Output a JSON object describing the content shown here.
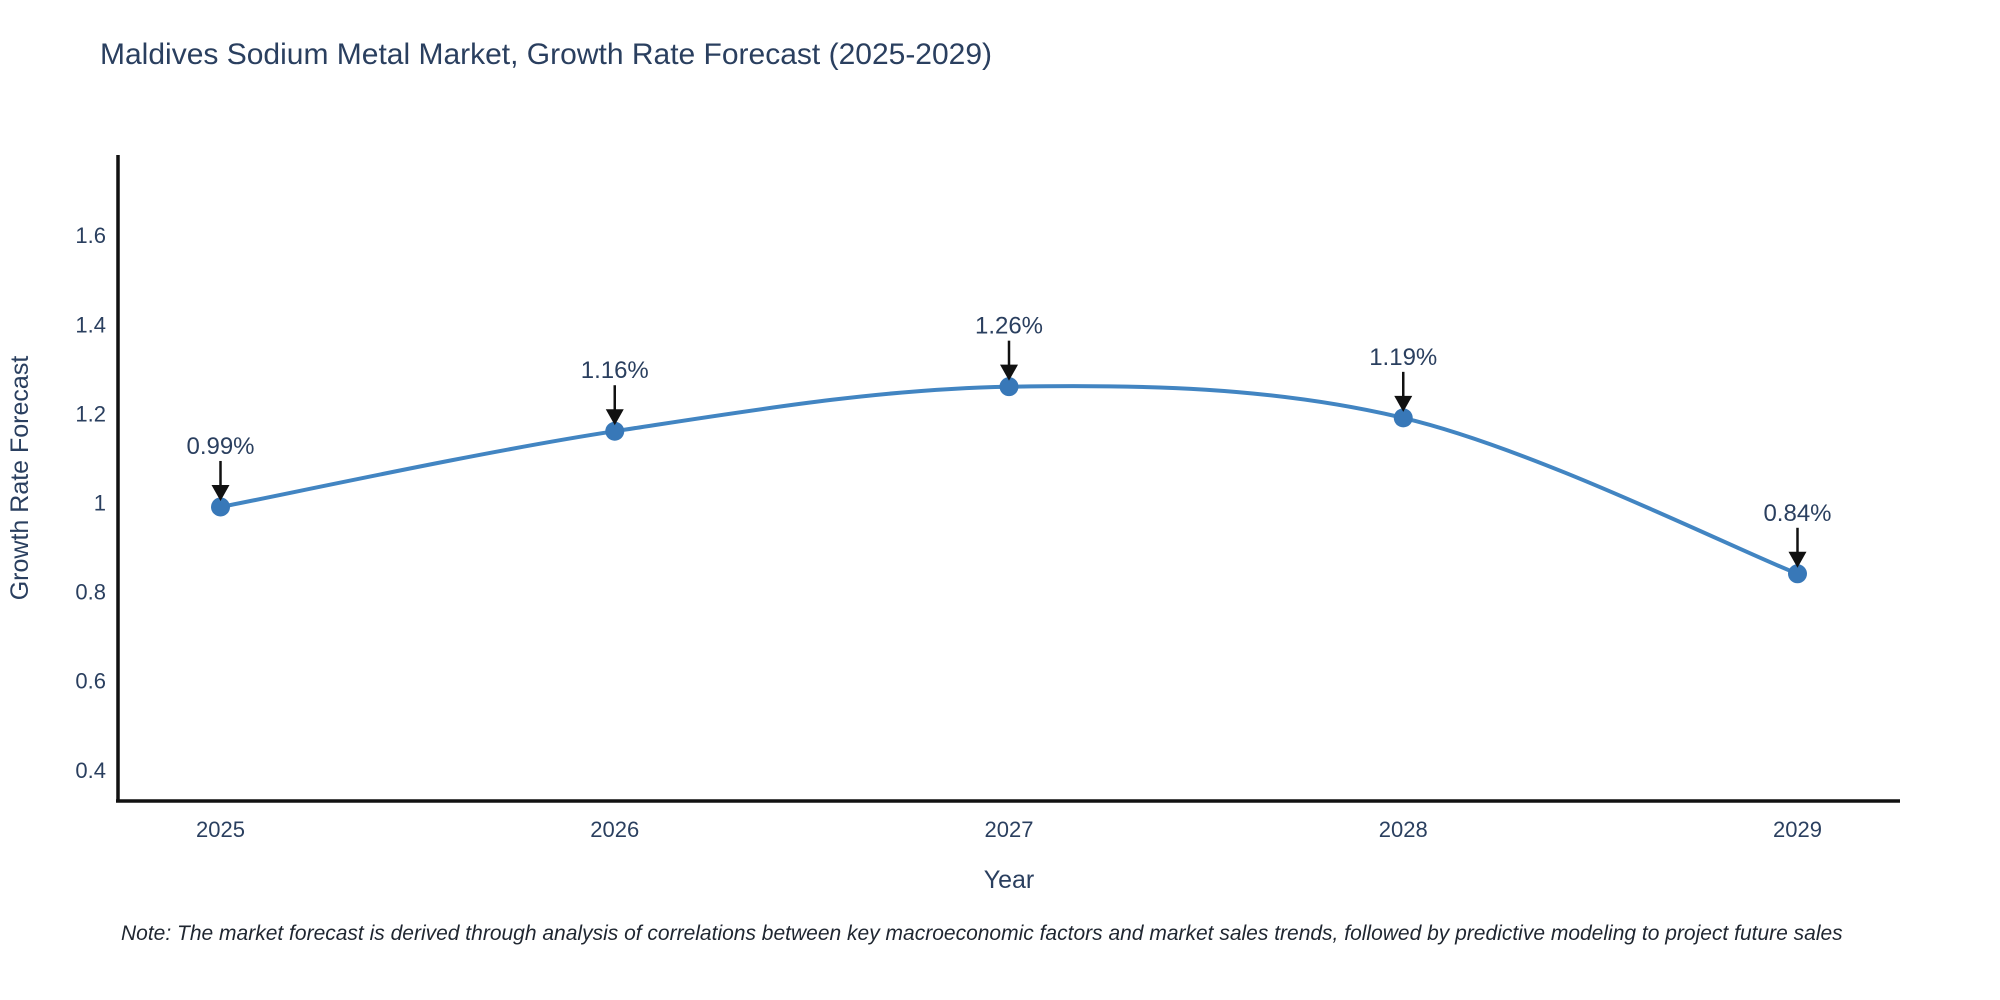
{
  "title": "Maldives Sodium Metal Market, Growth Rate Forecast (2025-2029)",
  "note": "Note: The market forecast is derived through analysis of correlations between key macroeconomic factors and market sales trends, followed by predictive modeling to project future sales",
  "chart_data": {
    "type": "line",
    "title": "Maldives Sodium Metal Market, Growth Rate Forecast (2025-2029)",
    "xlabel": "Year",
    "ylabel": "Growth Rate Forecast",
    "x": [
      2025,
      2026,
      2027,
      2028,
      2029
    ],
    "values": [
      0.99,
      1.16,
      1.26,
      1.19,
      0.84
    ],
    "point_labels": [
      "0.99%",
      "1.16%",
      "1.26%",
      "1.19%",
      "0.84%"
    ],
    "xticks": [
      "2025",
      "2026",
      "2027",
      "2028",
      "2029"
    ],
    "yticks": [
      0.4,
      0.6,
      0.8,
      1,
      1.2,
      1.4,
      1.6
    ],
    "ylim": [
      0.33,
      1.78
    ],
    "xlim": [
      2024.74,
      2029.26
    ],
    "grid": false,
    "legend": "none",
    "line_shape": "spline",
    "colors": {
      "line": "#4285c2",
      "marker": "#3878b8",
      "text": "#2a3f5f",
      "axis": "#111111",
      "arrow": "#111111",
      "background": "#ffffff"
    }
  }
}
